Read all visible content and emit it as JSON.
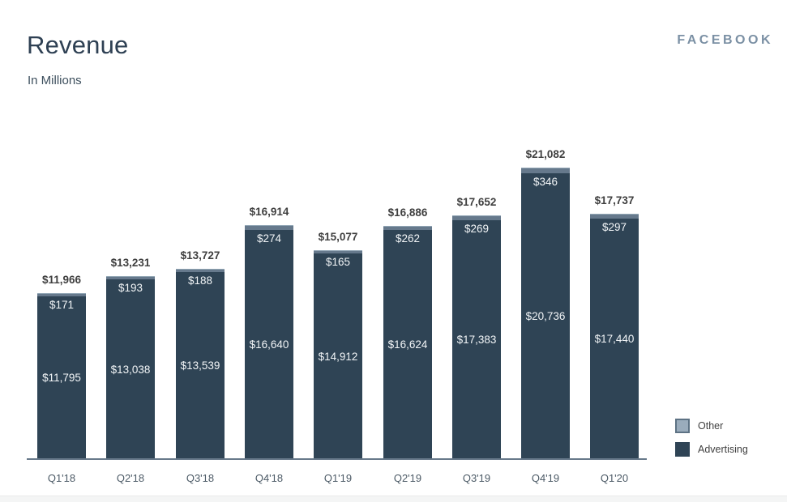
{
  "header": {
    "title": "Revenue",
    "subtitle": "In Millions",
    "brand": "FACEBOOK"
  },
  "legend": {
    "other_label": "Other",
    "advertising_label": "Advertising"
  },
  "chart_data": {
    "type": "bar",
    "stacked": true,
    "title": "Revenue",
    "subtitle": "In Millions",
    "unit": "USD millions",
    "categories": [
      "Q1'18",
      "Q2'18",
      "Q3'18",
      "Q4'18",
      "Q1'19",
      "Q2'19",
      "Q3'19",
      "Q4'19",
      "Q1'20"
    ],
    "series": [
      {
        "name": "Advertising",
        "color": "#2f4455",
        "values": [
          11795,
          13038,
          13539,
          16640,
          14912,
          16624,
          17383,
          20736,
          17440
        ],
        "labels": [
          "$11,795",
          "$13,038",
          "$13,539",
          "$16,640",
          "$14,912",
          "$16,624",
          "$17,383",
          "$20,736",
          "$17,440"
        ]
      },
      {
        "name": "Other",
        "color": "#66798c",
        "values": [
          171,
          193,
          188,
          274,
          165,
          262,
          269,
          346,
          297
        ],
        "labels": [
          "$171",
          "$193",
          "$188",
          "$274",
          "$165",
          "$262",
          "$269",
          "$346",
          "$297"
        ]
      }
    ],
    "totals": [
      11966,
      13231,
      13727,
      16914,
      15077,
      16886,
      17652,
      21082,
      17737
    ],
    "total_labels": [
      "$11,966",
      "$13,231",
      "$13,727",
      "$16,914",
      "$15,077",
      "$16,886",
      "$17,652",
      "$21,082",
      "$17,737"
    ],
    "colors": {
      "advertising_fill": "#2f4455",
      "other_fill": "#66798c",
      "other_strip_highlight": "#93a7b6",
      "legend_other_fill": "#9aacbc",
      "legend_other_border": "#5d7284",
      "axis_line": "#67798a",
      "total_label_text": "#3f3f3f",
      "inside_label_text": "#f2f5f7"
    },
    "axis": {
      "x_tick_labels": [
        "Q1'18",
        "Q2'18",
        "Q3'18",
        "Q4'18",
        "Q1'19",
        "Q2'19",
        "Q3'19",
        "Q4'19",
        "Q1'20"
      ],
      "y_axis_visible": false,
      "gridlines": false,
      "legend_position": "right"
    }
  }
}
